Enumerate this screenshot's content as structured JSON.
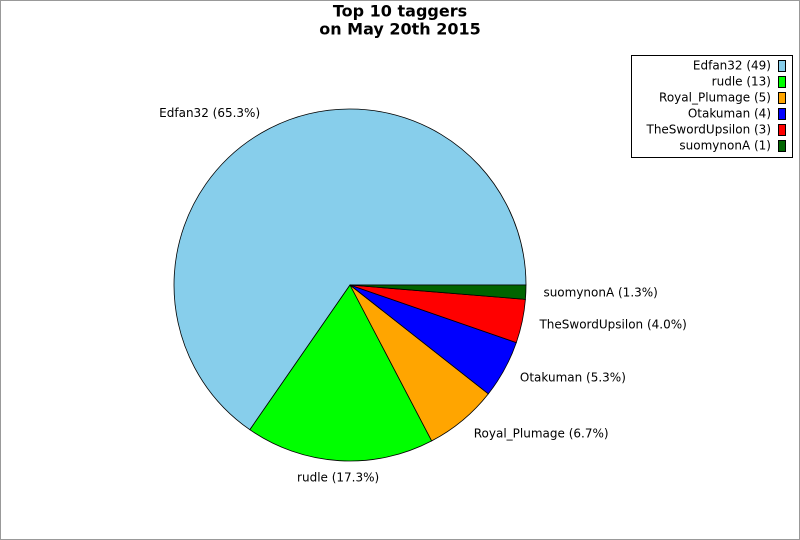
{
  "chart_data": {
    "type": "pie",
    "title": "Top 10 taggers",
    "subtitle": "on May 20th 2015",
    "categories": [
      "Edfan32 (49)",
      "rudle (13)",
      "Royal_Plumage (5)",
      "Otakuman (4)",
      "TheSwordUpsilon (3)",
      "suomynonA (1)"
    ],
    "values": [
      65.3,
      17.3,
      6.7,
      5.3,
      4.0,
      1.3
    ],
    "value_labels": [
      "Edfan32 (65.3%)",
      "rudle (17.3%)",
      "Royal_Plumage (6.7%)",
      "Otakuman (5.3%)",
      "TheSwordUpsilon (4.0%)",
      "suomynonA (1.3%)"
    ],
    "colors": [
      "#87ceeb",
      "#00ff00",
      "#ffa500",
      "#0000ff",
      "#ff0000",
      "#006400"
    ],
    "legend": "upper right"
  }
}
